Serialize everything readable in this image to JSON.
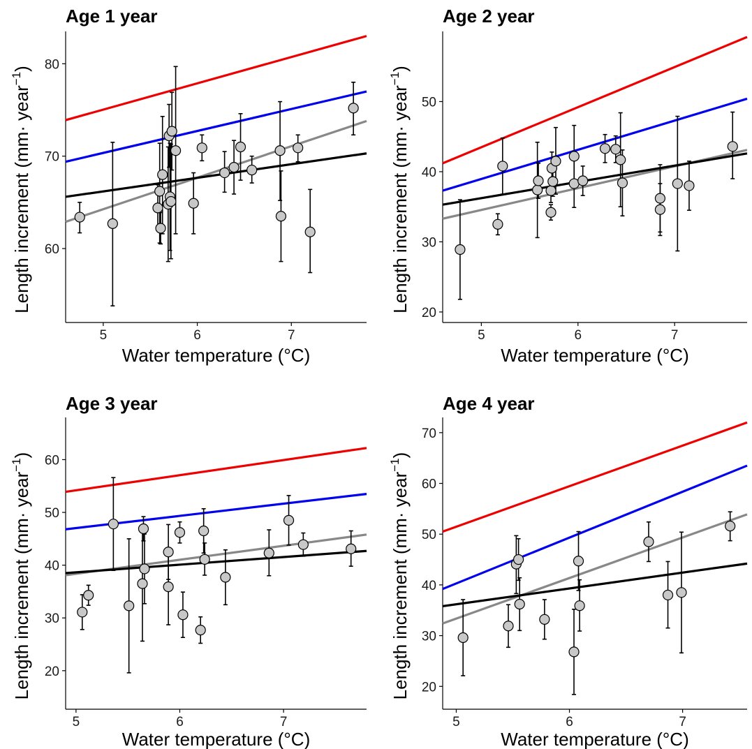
{
  "colors": {
    "red": "#ee0000",
    "blue": "#0000ee",
    "gray": "#888888",
    "black": "#000000",
    "point_fill": "#c8c8c8"
  },
  "chart_data": [
    {
      "type": "scatter",
      "title": "Age 1 year",
      "xlabel": "Water temperature (°C)",
      "ylabel_main": "Length increment (mm· year",
      "ylabel_sup": "−1",
      "ylabel_close": ")",
      "xlim": [
        4.6,
        7.8
      ],
      "ylim": [
        52,
        83.5
      ],
      "xticks": [
        5,
        6,
        7
      ],
      "yticks": [
        60,
        70,
        80
      ],
      "grid": false,
      "points": [
        {
          "x": 4.75,
          "y": 63.4,
          "lo": 61.7,
          "hi": 65.0
        },
        {
          "x": 5.1,
          "y": 62.7,
          "lo": 53.8,
          "hi": 71.5
        },
        {
          "x": 5.58,
          "y": 64.4,
          "lo": 62.0,
          "hi": 66.9
        },
        {
          "x": 5.6,
          "y": 66.2,
          "lo": 60.6,
          "hi": 71.4
        },
        {
          "x": 5.61,
          "y": 62.2,
          "lo": 60.5,
          "hi": 63.9
        },
        {
          "x": 5.63,
          "y": 68.0,
          "lo": 61.6,
          "hi": 74.3
        },
        {
          "x": 5.69,
          "y": 64.8,
          "lo": 58.6,
          "hi": 71.0
        },
        {
          "x": 5.7,
          "y": 72.2,
          "lo": 68.8,
          "hi": 75.6
        },
        {
          "x": 5.71,
          "y": 65.6,
          "lo": 59.8,
          "hi": 71.4
        },
        {
          "x": 5.72,
          "y": 65.1,
          "lo": 58.9,
          "hi": 71.3
        },
        {
          "x": 5.73,
          "y": 72.7,
          "lo": 68.5,
          "hi": 76.9
        },
        {
          "x": 5.77,
          "y": 70.6,
          "lo": 61.6,
          "hi": 79.7
        },
        {
          "x": 5.96,
          "y": 64.9,
          "lo": 61.6,
          "hi": 68.2
        },
        {
          "x": 6.05,
          "y": 70.9,
          "lo": 69.5,
          "hi": 72.3
        },
        {
          "x": 6.29,
          "y": 68.2,
          "lo": 66.1,
          "hi": 70.5
        },
        {
          "x": 6.39,
          "y": 68.8,
          "lo": 65.9,
          "hi": 71.7
        },
        {
          "x": 6.46,
          "y": 71.0,
          "lo": 67.4,
          "hi": 74.6
        },
        {
          "x": 6.58,
          "y": 68.5,
          "lo": 67.1,
          "hi": 70.0
        },
        {
          "x": 6.88,
          "y": 70.6,
          "lo": 65.2,
          "hi": 75.9
        },
        {
          "x": 6.89,
          "y": 63.5,
          "lo": 58.6,
          "hi": 68.4
        },
        {
          "x": 7.07,
          "y": 70.9,
          "lo": 69.4,
          "hi": 72.3
        },
        {
          "x": 7.2,
          "y": 61.8,
          "lo": 57.4,
          "hi": 66.4
        },
        {
          "x": 7.66,
          "y": 75.2,
          "lo": 72.3,
          "hi": 78.0
        }
      ],
      "lines": [
        {
          "color": "red",
          "y0": 73.9,
          "y1": 83.0
        },
        {
          "color": "blue",
          "y0": 69.4,
          "y1": 77.0
        },
        {
          "color": "gray",
          "y0": 62.9,
          "y1": 73.8
        },
        {
          "color": "black",
          "y0": 65.6,
          "y1": 70.3
        }
      ]
    },
    {
      "type": "scatter",
      "title": "Age 2 year",
      "xlabel": "Water temperature (°C)",
      "ylabel_main": "Length increment (mm· year",
      "ylabel_sup": "−1",
      "ylabel_close": ")",
      "xlim": [
        4.6,
        7.75
      ],
      "ylim": [
        18.5,
        60
      ],
      "xticks": [
        5,
        6,
        7
      ],
      "yticks": [
        20,
        30,
        40,
        50
      ],
      "grid": false,
      "points": [
        {
          "x": 4.78,
          "y": 28.9,
          "lo": 21.8,
          "hi": 36.0
        },
        {
          "x": 5.17,
          "y": 32.5,
          "lo": 31.0,
          "hi": 34.0
        },
        {
          "x": 5.22,
          "y": 40.8,
          "lo": 36.8,
          "hi": 44.8
        },
        {
          "x": 5.58,
          "y": 37.4,
          "lo": 30.6,
          "hi": 44.2
        },
        {
          "x": 5.59,
          "y": 38.7,
          "lo": 36.2,
          "hi": 41.2
        },
        {
          "x": 5.72,
          "y": 34.2,
          "lo": 33.1,
          "hi": 35.3
        },
        {
          "x": 5.72,
          "y": 37.3,
          "lo": 35.6,
          "hi": 39.0
        },
        {
          "x": 5.73,
          "y": 40.5,
          "lo": 38.1,
          "hi": 42.8
        },
        {
          "x": 5.74,
          "y": 38.6,
          "lo": 36.5,
          "hi": 40.7
        },
        {
          "x": 5.77,
          "y": 41.5,
          "lo": 36.8,
          "hi": 46.3
        },
        {
          "x": 5.96,
          "y": 42.2,
          "lo": 37.8,
          "hi": 46.6
        },
        {
          "x": 5.96,
          "y": 38.3,
          "lo": 34.9,
          "hi": 41.7
        },
        {
          "x": 6.05,
          "y": 38.7,
          "lo": 36.6,
          "hi": 40.8
        },
        {
          "x": 6.28,
          "y": 43.3,
          "lo": 41.3,
          "hi": 45.3
        },
        {
          "x": 6.39,
          "y": 43.2,
          "lo": 41.3,
          "hi": 45.1
        },
        {
          "x": 6.44,
          "y": 41.7,
          "lo": 35.0,
          "hi": 48.4
        },
        {
          "x": 6.46,
          "y": 38.4,
          "lo": 33.7,
          "hi": 43.1
        },
        {
          "x": 6.85,
          "y": 36.2,
          "lo": 31.4,
          "hi": 41.0
        },
        {
          "x": 6.85,
          "y": 34.6,
          "lo": 30.9,
          "hi": 38.3
        },
        {
          "x": 7.03,
          "y": 38.3,
          "lo": 28.7,
          "hi": 47.9
        },
        {
          "x": 7.15,
          "y": 38.0,
          "lo": 34.5,
          "hi": 41.5
        },
        {
          "x": 7.6,
          "y": 43.6,
          "lo": 39.0,
          "hi": 48.5
        }
      ],
      "lines": [
        {
          "color": "red",
          "y0": 41.2,
          "y1": 59.2
        },
        {
          "color": "blue",
          "y0": 37.3,
          "y1": 50.4
        },
        {
          "color": "gray",
          "y0": 33.3,
          "y1": 43.1
        },
        {
          "color": "black",
          "y0": 35.3,
          "y1": 42.6
        }
      ]
    },
    {
      "type": "scatter",
      "title": "Age 3 year",
      "xlabel": "Water temperature (°C)",
      "ylabel_main": "Length increment (mm· year",
      "ylabel_sup": "−1",
      "ylabel_close": ")",
      "xlim": [
        4.9,
        7.8
      ],
      "ylim": [
        12.7,
        68
      ],
      "xticks": [
        5,
        6,
        7
      ],
      "yticks": [
        20,
        30,
        40,
        50,
        60
      ],
      "grid": false,
      "points": [
        {
          "x": 5.06,
          "y": 31.1,
          "lo": 27.8,
          "hi": 34.4
        },
        {
          "x": 5.12,
          "y": 34.3,
          "lo": 32.4,
          "hi": 36.2
        },
        {
          "x": 5.36,
          "y": 47.8,
          "lo": 39.0,
          "hi": 56.6
        },
        {
          "x": 5.51,
          "y": 32.3,
          "lo": 19.6,
          "hi": 45.0
        },
        {
          "x": 5.64,
          "y": 36.5,
          "lo": 25.6,
          "hi": 47.4
        },
        {
          "x": 5.65,
          "y": 46.9,
          "lo": 44.6,
          "hi": 49.2
        },
        {
          "x": 5.66,
          "y": 39.3,
          "lo": 32.7,
          "hi": 45.9
        },
        {
          "x": 5.89,
          "y": 42.5,
          "lo": 37.3,
          "hi": 47.7
        },
        {
          "x": 5.89,
          "y": 35.9,
          "lo": 28.7,
          "hi": 43.1
        },
        {
          "x": 6.0,
          "y": 46.2,
          "lo": 44.2,
          "hi": 48.2
        },
        {
          "x": 6.03,
          "y": 30.6,
          "lo": 26.3,
          "hi": 34.9
        },
        {
          "x": 6.2,
          "y": 27.7,
          "lo": 25.2,
          "hi": 30.2
        },
        {
          "x": 6.23,
          "y": 46.5,
          "lo": 42.3,
          "hi": 50.7
        },
        {
          "x": 6.24,
          "y": 41.1,
          "lo": 38.1,
          "hi": 44.2
        },
        {
          "x": 6.44,
          "y": 37.7,
          "lo": 32.5,
          "hi": 42.9
        },
        {
          "x": 6.86,
          "y": 42.3,
          "lo": 38.0,
          "hi": 46.7
        },
        {
          "x": 7.05,
          "y": 48.5,
          "lo": 43.8,
          "hi": 53.2
        },
        {
          "x": 7.19,
          "y": 43.9,
          "lo": 41.7,
          "hi": 46.1
        },
        {
          "x": 7.65,
          "y": 43.1,
          "lo": 39.8,
          "hi": 46.5
        }
      ],
      "lines": [
        {
          "color": "red",
          "y0": 53.9,
          "y1": 62.2
        },
        {
          "color": "blue",
          "y0": 46.8,
          "y1": 53.5
        },
        {
          "color": "gray",
          "y0": 38.1,
          "y1": 45.8
        },
        {
          "color": "black",
          "y0": 38.5,
          "y1": 42.7
        }
      ]
    },
    {
      "type": "scatter",
      "title": "Age 4 year",
      "xlabel": "Water temperature (°C)",
      "ylabel_main": "Length increment (mm· year",
      "ylabel_sup": "−1",
      "ylabel_close": ")",
      "xlim": [
        4.88,
        7.57
      ],
      "ylim": [
        15.5,
        73
      ],
      "xticks": [
        5,
        6,
        7
      ],
      "yticks": [
        20,
        30,
        40,
        50,
        60,
        70
      ],
      "grid": false,
      "points": [
        {
          "x": 5.06,
          "y": 29.6,
          "lo": 22.1,
          "hi": 37.1
        },
        {
          "x": 5.46,
          "y": 31.9,
          "lo": 27.7,
          "hi": 36.1
        },
        {
          "x": 5.53,
          "y": 44.1,
          "lo": 38.3,
          "hi": 49.7
        },
        {
          "x": 5.55,
          "y": 45.0,
          "lo": 40.9,
          "hi": 49.1
        },
        {
          "x": 5.56,
          "y": 36.2,
          "lo": 31.0,
          "hi": 41.4
        },
        {
          "x": 5.78,
          "y": 33.2,
          "lo": 29.3,
          "hi": 37.1
        },
        {
          "x": 6.04,
          "y": 26.8,
          "lo": 18.4,
          "hi": 35.2
        },
        {
          "x": 6.08,
          "y": 44.7,
          "lo": 38.9,
          "hi": 50.5
        },
        {
          "x": 6.09,
          "y": 35.9,
          "lo": 30.9,
          "hi": 41.0
        },
        {
          "x": 6.7,
          "y": 48.5,
          "lo": 44.6,
          "hi": 52.4
        },
        {
          "x": 6.87,
          "y": 38.0,
          "lo": 31.5,
          "hi": 44.6
        },
        {
          "x": 6.99,
          "y": 38.5,
          "lo": 26.6,
          "hi": 50.4
        },
        {
          "x": 7.42,
          "y": 51.6,
          "lo": 48.7,
          "hi": 54.4
        }
      ],
      "lines": [
        {
          "color": "red",
          "y0": 50.5,
          "y1": 72.0
        },
        {
          "color": "blue",
          "y0": 39.2,
          "y1": 63.5
        },
        {
          "color": "gray",
          "y0": 32.4,
          "y1": 53.9
        },
        {
          "color": "black",
          "y0": 35.8,
          "y1": 44.2
        }
      ]
    }
  ]
}
